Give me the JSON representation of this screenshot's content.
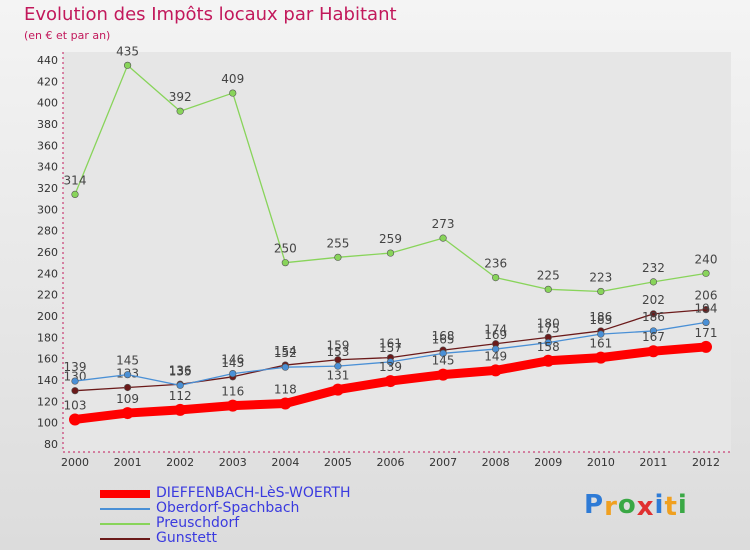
{
  "title": "Evolution des Impôts locaux par Habitant",
  "subtitle": "(en € et par an)",
  "logo": {
    "letters": [
      "P",
      "r",
      "o",
      "x",
      "i",
      "t",
      "i"
    ],
    "colors": [
      "#2e7bd6",
      "#f0a020",
      "#3aa845",
      "#e03030",
      "#2e7bd6",
      "#f0a020",
      "#3aa845"
    ]
  },
  "chart_data": {
    "type": "line",
    "title": "Evolution des Impôts locaux par Habitant",
    "subtitle": "(en € et par an)",
    "xlabel": "",
    "ylabel": "",
    "x": [
      2000,
      2001,
      2002,
      2003,
      2004,
      2005,
      2006,
      2007,
      2008,
      2009,
      2010,
      2011,
      2012
    ],
    "ylim": [
      80,
      440
    ],
    "ytick_step": 20,
    "grid": false,
    "legend_position": "bottom-left",
    "series": [
      {
        "name": "DIEFFENBACH-LèS-WOERTH",
        "color": "#ff0000",
        "values": [
          103,
          109,
          112,
          116,
          118,
          131,
          139,
          145,
          149,
          158,
          161,
          167,
          171
        ]
      },
      {
        "name": "Oberdorf-Spachbach",
        "color": "#4a90d6",
        "values": [
          139,
          145,
          135,
          146,
          152,
          153,
          157,
          165,
          169,
          175,
          183,
          186,
          194
        ]
      },
      {
        "name": "Preuschdorf",
        "color": "#88d45a",
        "values": [
          314,
          435,
          392,
          409,
          250,
          255,
          259,
          273,
          236,
          225,
          223,
          232,
          240
        ]
      },
      {
        "name": "Gunstett",
        "color": "#6b1a1a",
        "values": [
          130,
          133,
          136,
          143,
          154,
          159,
          161,
          168,
          174,
          180,
          186,
          202,
          206
        ]
      }
    ]
  }
}
